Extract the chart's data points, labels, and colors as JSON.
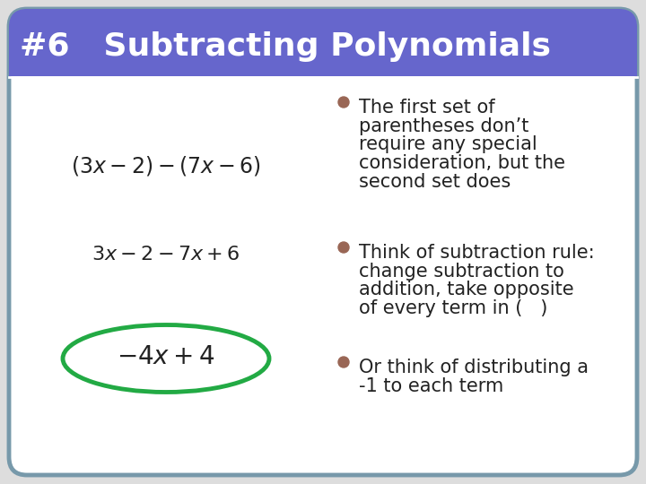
{
  "title": "#6   Subtracting Polynomials",
  "title_bg_color": "#6666cc",
  "title_text_color": "#ffffff",
  "slide_bg_color": "#ffffff",
  "slide_border_color": "#7799aa",
  "math_color": "#222222",
  "ellipse_color": "#22aa44",
  "bullet_color": "#996655",
  "bullet_text_color": "#222222",
  "bullets": [
    "The first set of\nparentheses don’t\nrequire any special\nconsideration, but the\nsecond set does",
    "Think of subtraction rule:\nchange subtraction to\naddition, take opposite\nof every term in (   )",
    "Or think of distributing a\n-1 to each term"
  ],
  "font_size_title": 26,
  "font_size_math1": 17,
  "font_size_math2": 16,
  "font_size_math3": 20,
  "font_size_bullet": 15
}
